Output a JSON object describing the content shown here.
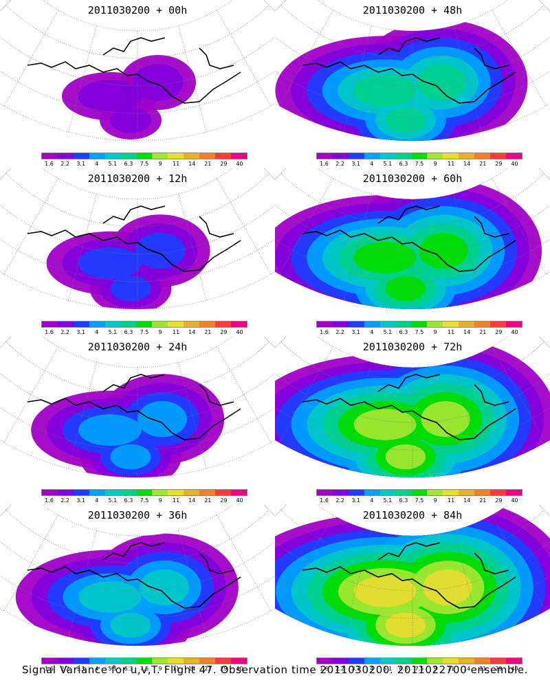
{
  "chart_data": {
    "type": "heatmap",
    "caption": "Signal Variance for u,v,T. Flight 47. Observation time 2011030200. 2011022700 ensemble.",
    "colorbar": {
      "labels": [
        "1.6",
        "2.2",
        "3.1",
        "4",
        "5.1",
        "6.3",
        "7.5",
        "9",
        "11",
        "14",
        "21",
        "29",
        "40"
      ],
      "colors": [
        "#a000c8",
        "#8200dc",
        "#1e3cff",
        "#00a0ff",
        "#00c8c8",
        "#00d28c",
        "#00dc00",
        "#a0e632",
        "#e6dc32",
        "#e6af2d",
        "#f08228",
        "#fa3c3c",
        "#f00082"
      ]
    },
    "panels": [
      {
        "title": "2011030200 + 00h",
        "intensity": 0
      },
      {
        "title": "2011030200 + 12h",
        "intensity": 1
      },
      {
        "title": "2011030200 + 24h",
        "intensity": 2
      },
      {
        "title": "2011030200 + 36h",
        "intensity": 3
      },
      {
        "title": "2011030200 + 48h",
        "intensity": 4
      },
      {
        "title": "2011030200 + 60h",
        "intensity": 5
      },
      {
        "title": "2011030200 + 72h",
        "intensity": 6
      },
      {
        "title": "2011030200 + 84h",
        "intensity": 7
      }
    ]
  }
}
